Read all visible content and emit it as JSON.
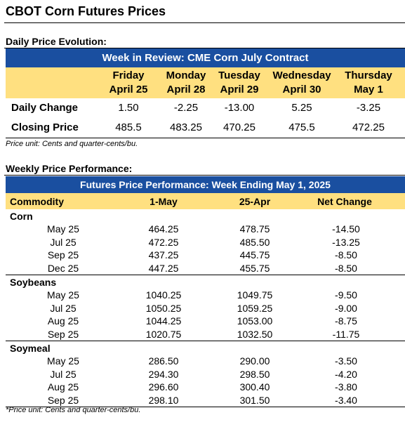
{
  "title": "CBOT Corn Futures Prices",
  "daily": {
    "section_label": "Daily Price Evolution:",
    "banner": "Week in Review: CME Corn July Contract",
    "days": [
      {
        "day": "Friday",
        "date": "April 25"
      },
      {
        "day": "Monday",
        "date": "April 28"
      },
      {
        "day": "Tuesday",
        "date": "April 29"
      },
      {
        "day": "Wednesday",
        "date": "April 30"
      },
      {
        "day": "Thursday",
        "date": "May 1"
      }
    ],
    "rows": [
      {
        "label": "Daily Change",
        "values": [
          "1.50",
          "-2.25",
          "-13.00",
          "5.25",
          "-3.25"
        ]
      },
      {
        "label": "Closing Price",
        "values": [
          "485.5",
          "483.25",
          "470.25",
          "475.5",
          "472.25"
        ]
      }
    ],
    "note": "Price unit: Cents and quarter-cents/bu."
  },
  "weekly": {
    "section_label": "Weekly Price Performance:",
    "banner": "Futures Price Performance: Week Ending May 1, 2025",
    "headers": [
      "Commodity",
      "1-May",
      "25-Apr",
      "Net Change"
    ],
    "groups": [
      {
        "name": "Corn",
        "rows": [
          [
            "May 25",
            "464.25",
            "478.75",
            "-14.50"
          ],
          [
            "Jul 25",
            "472.25",
            "485.50",
            "-13.25"
          ],
          [
            "Sep 25",
            "437.25",
            "445.75",
            "-8.50"
          ],
          [
            "Dec 25",
            "447.25",
            "455.75",
            "-8.50"
          ]
        ]
      },
      {
        "name": "Soybeans",
        "rows": [
          [
            "May 25",
            "1040.25",
            "1049.75",
            "-9.50"
          ],
          [
            "Jul 25",
            "1050.25",
            "1059.25",
            "-9.00"
          ],
          [
            "Aug 25",
            "1044.25",
            "1053.00",
            "-8.75"
          ],
          [
            "Sep 25",
            "1020.75",
            "1032.50",
            "-11.75"
          ]
        ]
      },
      {
        "name": "Soymeal",
        "rows": [
          [
            "May 25",
            "286.50",
            "290.00",
            "-3.50"
          ],
          [
            "Jul 25",
            "294.30",
            "298.50",
            "-4.20"
          ],
          [
            "Aug 25",
            "296.60",
            "300.40",
            "-3.80"
          ],
          [
            "Sep 25",
            "298.10",
            "301.50",
            "-3.40"
          ]
        ]
      }
    ],
    "note": "*Price unit: Cents and quarter-cents/bu."
  },
  "colors": {
    "banner": "#1a4fa0",
    "header_band": "#ffe080"
  }
}
